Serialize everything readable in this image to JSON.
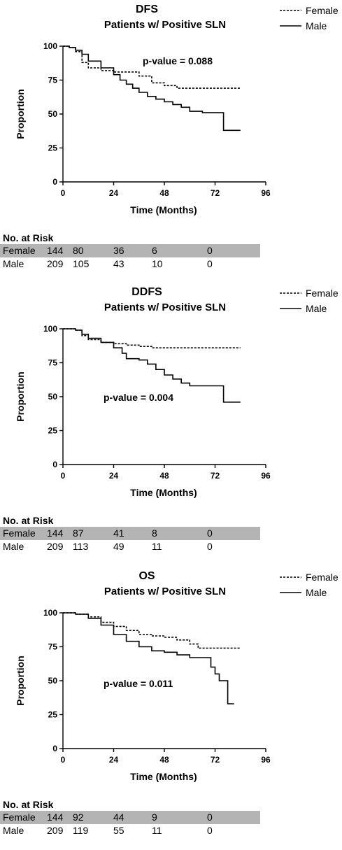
{
  "chart_data": [
    {
      "type": "line",
      "title": "DFS",
      "subtitle": "Patients w/ Positive SLN",
      "xlabel": "Time (Months)",
      "ylabel": "Proportion",
      "xlim": [
        0,
        96
      ],
      "ylim": [
        0,
        100
      ],
      "xticks": [
        "0",
        "24",
        "48",
        "72",
        "96"
      ],
      "yticks": [
        "0",
        "25",
        "50",
        "75",
        "100"
      ],
      "legend_position": "top-right",
      "annotation": "p-value =  0.088",
      "series": [
        {
          "name": "Female",
          "style": "dashed",
          "x": [
            0,
            3,
            6,
            9,
            12,
            18,
            24,
            30,
            36,
            42,
            48,
            54,
            60,
            66,
            72,
            84
          ],
          "y": [
            100,
            99,
            96,
            88,
            84,
            82,
            81,
            81,
            78,
            73,
            71,
            69,
            69,
            69,
            69,
            69
          ]
        },
        {
          "name": "Male",
          "style": "solid",
          "x": [
            0,
            3,
            6,
            9,
            12,
            18,
            24,
            27,
            30,
            33,
            36,
            40,
            44,
            48,
            52,
            56,
            60,
            66,
            72,
            76,
            76,
            84
          ],
          "y": [
            100,
            99,
            97,
            94,
            89,
            84,
            79,
            75,
            72,
            69,
            66,
            63,
            61,
            59,
            57,
            55,
            52,
            51,
            51,
            51,
            38,
            38
          ]
        }
      ],
      "risk_table": {
        "heading": "No. at Risk",
        "columns": [
          "0",
          "24",
          "48",
          "72",
          "96"
        ],
        "rows": [
          {
            "group": "Female",
            "values": [
              "144",
              "80",
              "36",
              "6",
              "0"
            ]
          },
          {
            "group": "Male",
            "values": [
              "209",
              "105",
              "43",
              "10",
              "0"
            ]
          }
        ]
      }
    },
    {
      "type": "line",
      "title": "DDFS",
      "subtitle": "Patients w/ Positive SLN",
      "xlabel": "Time (Months)",
      "ylabel": "Proportion",
      "xlim": [
        0,
        96
      ],
      "ylim": [
        0,
        100
      ],
      "xticks": [
        "0",
        "24",
        "48",
        "72",
        "96"
      ],
      "yticks": [
        "0",
        "25",
        "50",
        "75",
        "100"
      ],
      "legend_position": "top-right",
      "annotation": "p-value =  0.004",
      "series": [
        {
          "name": "Female",
          "style": "dashed",
          "x": [
            0,
            6,
            9,
            12,
            18,
            24,
            30,
            36,
            42,
            48,
            60,
            72,
            84
          ],
          "y": [
            100,
            99,
            95,
            92,
            90,
            89,
            88,
            87,
            86,
            86,
            86,
            86,
            86
          ]
        },
        {
          "name": "Male",
          "style": "solid",
          "x": [
            0,
            6,
            9,
            12,
            18,
            24,
            28,
            30,
            36,
            40,
            44,
            48,
            52,
            56,
            60,
            66,
            72,
            76,
            76,
            84
          ],
          "y": [
            100,
            99,
            96,
            93,
            90,
            86,
            82,
            78,
            77,
            74,
            70,
            66,
            63,
            60,
            58,
            58,
            58,
            58,
            46,
            46
          ]
        }
      ],
      "risk_table": {
        "heading": "No. at Risk",
        "columns": [
          "0",
          "24",
          "48",
          "72",
          "96"
        ],
        "rows": [
          {
            "group": "Female",
            "values": [
              "144",
              "87",
              "41",
              "8",
              "0"
            ]
          },
          {
            "group": "Male",
            "values": [
              "209",
              "113",
              "49",
              "11",
              "0"
            ]
          }
        ]
      }
    },
    {
      "type": "line",
      "title": "OS",
      "subtitle": "Patients w/ Positive SLN",
      "xlabel": "Time (Months)",
      "ylabel": "Proportion",
      "xlim": [
        0,
        96
      ],
      "ylim": [
        0,
        100
      ],
      "xticks": [
        "0",
        "24",
        "48",
        "72",
        "96"
      ],
      "yticks": [
        "0",
        "25",
        "50",
        "75",
        "100"
      ],
      "legend_position": "top-right",
      "annotation": "p-value =  0.011",
      "series": [
        {
          "name": "Female",
          "style": "dashed",
          "x": [
            0,
            6,
            12,
            18,
            24,
            30,
            36,
            42,
            48,
            54,
            60,
            64,
            70,
            84
          ],
          "y": [
            100,
            99,
            97,
            93,
            90,
            87,
            84,
            83,
            82,
            80,
            77,
            74,
            74,
            74
          ]
        },
        {
          "name": "Male",
          "style": "solid",
          "x": [
            0,
            6,
            12,
            18,
            24,
            30,
            36,
            42,
            48,
            54,
            60,
            66,
            70,
            72,
            74,
            78,
            78,
            81
          ],
          "y": [
            100,
            99,
            96,
            91,
            84,
            79,
            75,
            72,
            71,
            69,
            67,
            67,
            60,
            55,
            50,
            50,
            33,
            33
          ]
        }
      ],
      "risk_table": {
        "heading": "No. at Risk",
        "columns": [
          "0",
          "24",
          "48",
          "72",
          "96"
        ],
        "rows": [
          {
            "group": "Female",
            "values": [
              "144",
              "92",
              "44",
              "9",
              "0"
            ]
          },
          {
            "group": "Male",
            "values": [
              "209",
              "119",
              "55",
              "11",
              "0"
            ]
          }
        ]
      }
    }
  ]
}
